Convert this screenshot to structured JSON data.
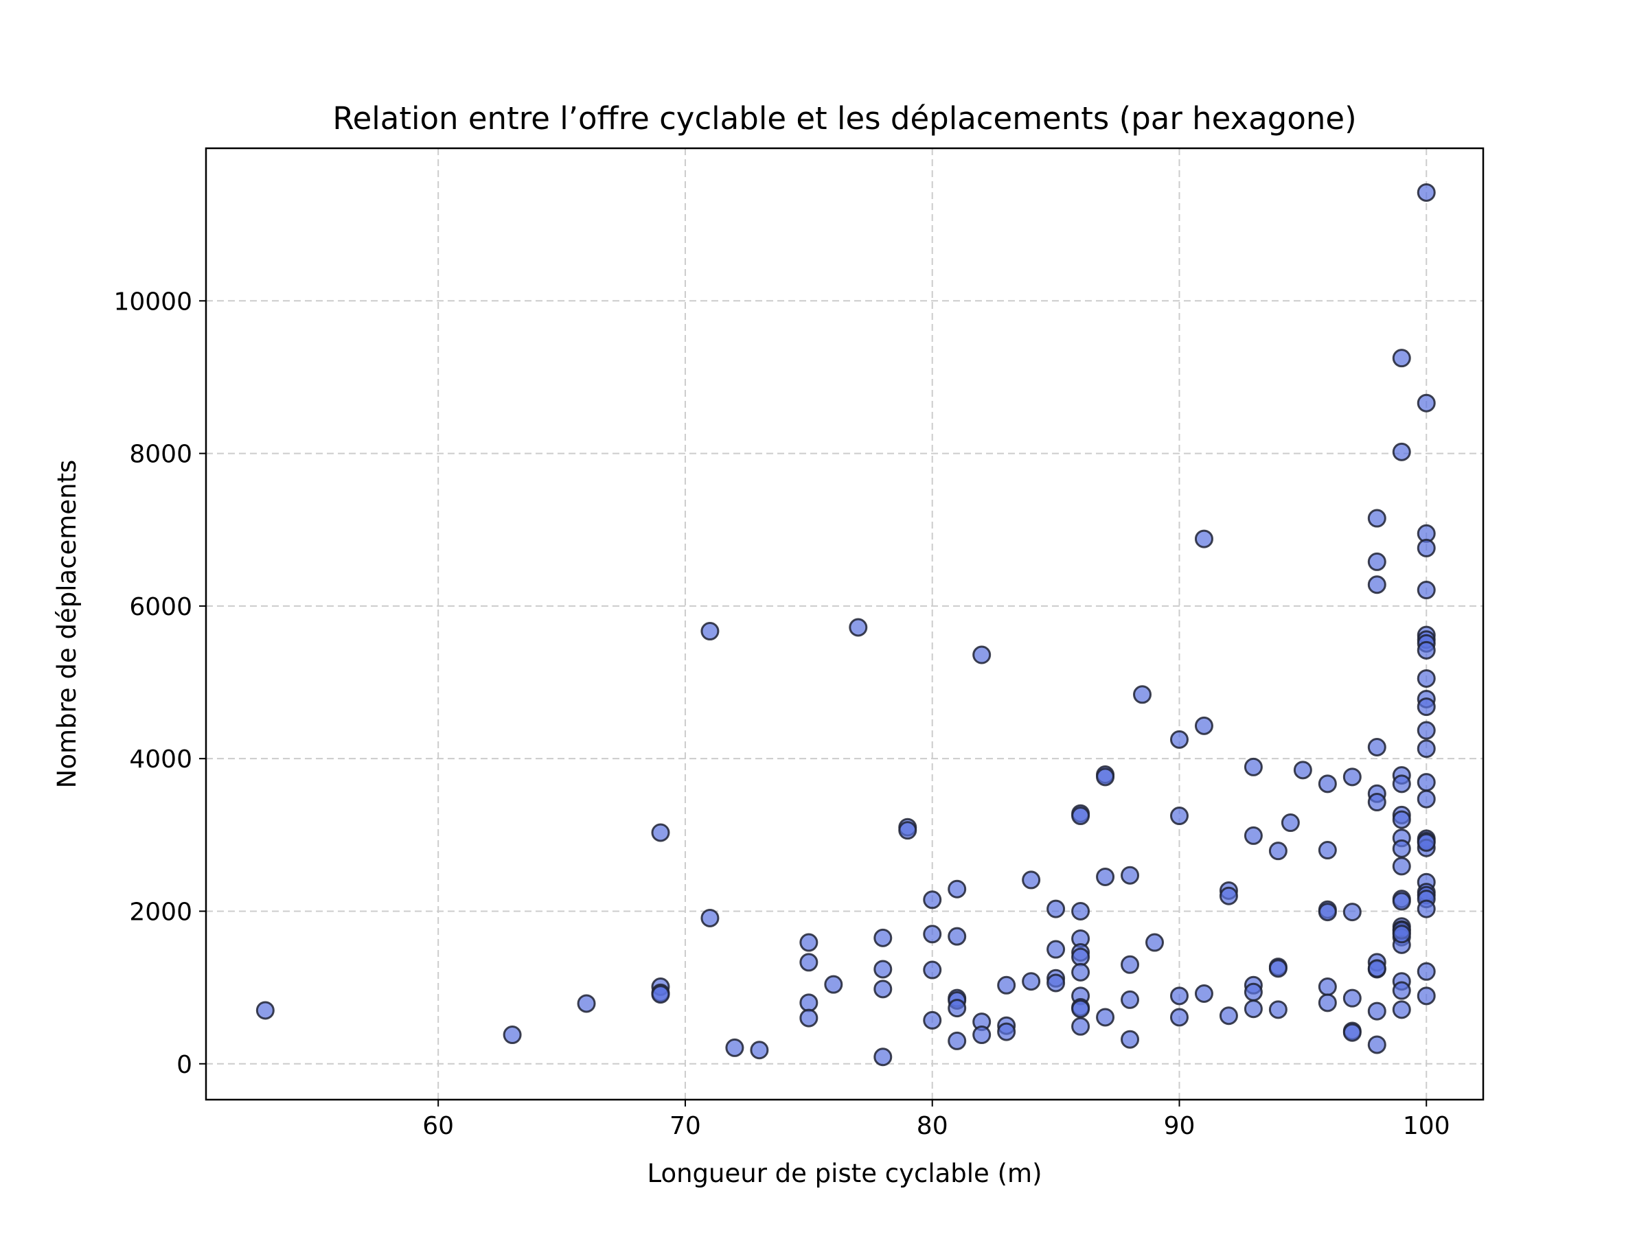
{
  "chart_data": {
    "type": "scatter",
    "title": "Relation entre l’offre cyclable et les déplacements (par hexagone)",
    "xlabel": "Longueur de piste cyclable (m)",
    "ylabel": "Nombre de déplacements",
    "xlim": [
      50.6,
      102.3
    ],
    "ylim": [
      -470,
      12000
    ],
    "x_ticks": [
      60,
      70,
      80,
      90,
      100
    ],
    "y_ticks": [
      0,
      2000,
      4000,
      6000,
      8000,
      10000
    ],
    "grid": true,
    "marker_color": "#5b74e0",
    "marker_edge_color": "#1f2233",
    "series": [
      {
        "x": [
          53,
          63,
          66,
          69,
          69,
          69,
          69,
          71,
          71,
          72,
          73,
          75,
          75,
          75,
          75,
          76,
          77,
          78,
          78,
          78,
          78,
          79,
          79,
          80,
          80,
          80,
          80,
          81,
          81,
          81,
          81,
          81,
          81,
          82,
          82,
          82,
          83,
          83,
          83,
          84,
          84,
          85,
          85,
          85,
          85,
          86,
          86,
          86,
          86,
          86,
          86,
          86,
          86,
          86,
          86,
          86,
          87,
          87,
          87,
          87,
          88,
          88,
          88,
          88,
          88.5,
          89,
          90,
          90,
          90,
          90,
          91,
          91,
          91,
          92,
          92,
          92,
          93,
          93,
          93,
          93,
          93,
          94,
          94,
          94,
          94,
          94.5,
          95,
          96,
          96,
          96,
          96,
          96,
          96,
          97,
          97,
          97,
          97,
          97,
          98,
          98,
          98,
          98,
          98,
          98,
          98,
          98,
          98,
          98,
          98,
          99,
          99,
          99,
          99,
          99,
          99,
          99,
          99,
          99,
          99,
          99,
          99,
          99,
          99,
          99,
          99,
          99,
          99,
          99,
          99,
          99,
          100,
          100,
          100,
          100,
          100,
          100,
          100,
          100,
          100,
          100,
          100,
          100,
          100,
          100,
          100,
          100,
          100,
          100,
          100,
          100,
          100,
          100,
          100,
          100,
          100,
          100,
          100
        ],
        "y": [
          700,
          380,
          790,
          3030,
          1010,
          930,
          910,
          5670,
          1910,
          210,
          180,
          1590,
          1330,
          800,
          600,
          1040,
          5720,
          1650,
          1240,
          980,
          90,
          3100,
          3060,
          2150,
          1700,
          1230,
          570,
          2290,
          1670,
          860,
          830,
          730,
          300,
          5360,
          550,
          380,
          1030,
          500,
          420,
          2410,
          1080,
          2030,
          1500,
          1120,
          1060,
          3280,
          3250,
          2000,
          1640,
          1460,
          1400,
          1200,
          890,
          740,
          720,
          490,
          3790,
          3760,
          2450,
          610,
          2470,
          1300,
          840,
          320,
          4840,
          1590,
          4250,
          3250,
          890,
          610,
          6880,
          4430,
          920,
          2270,
          2200,
          630,
          3890,
          2990,
          1030,
          940,
          720,
          2790,
          1270,
          1250,
          710,
          3160,
          3850,
          3670,
          2800,
          2020,
          1990,
          1010,
          800,
          3760,
          1990,
          860,
          430,
          410,
          7150,
          6580,
          6280,
          4150,
          3540,
          3430,
          1330,
          1240,
          690,
          250,
          1250,
          9250,
          8020,
          3780,
          3670,
          3260,
          3200,
          2960,
          2820,
          2590,
          2160,
          2130,
          1800,
          1760,
          1720,
          1660,
          1560,
          1080,
          960,
          710,
          1750,
          1700,
          11420,
          8660,
          6950,
          6760,
          6210,
          5620,
          5560,
          5510,
          5420,
          5050,
          4780,
          4680,
          4370,
          4130,
          3690,
          3470,
          2950,
          2920,
          2830,
          2380,
          2250,
          2210,
          2160,
          2030,
          1210,
          890,
          2900
        ]
      }
    ]
  }
}
